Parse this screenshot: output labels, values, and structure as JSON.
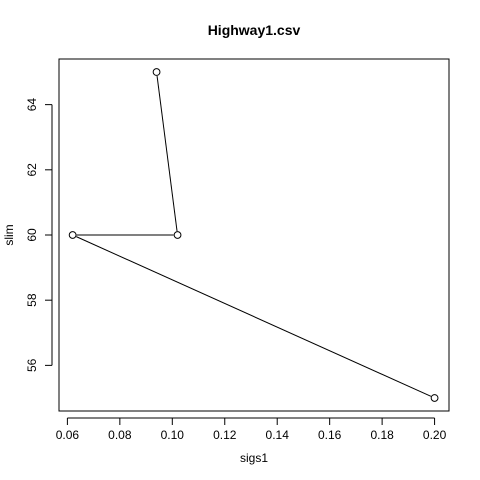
{
  "chart_data": {
    "type": "line",
    "title": "Highway1.csv",
    "xlabel": "sigs1",
    "ylabel": "slim",
    "xlim": [
      0.0568,
      0.2055
    ],
    "ylim": [
      54.6,
      65.4
    ],
    "x_ticks": [
      0.06,
      0.08,
      0.1,
      0.12,
      0.14,
      0.16,
      0.18,
      0.2
    ],
    "x_tick_labels": [
      "0.06",
      "0.08",
      "0.10",
      "0.12",
      "0.14",
      "0.16",
      "0.18",
      "0.20"
    ],
    "y_ticks": [
      56,
      58,
      60,
      62,
      64
    ],
    "y_tick_labels": [
      "56",
      "58",
      "60",
      "62",
      "64"
    ],
    "grid": false,
    "series": [
      {
        "marker": "open-circle",
        "line": true,
        "color": "#000000",
        "x": [
          0.094,
          0.102,
          0.062,
          0.2
        ],
        "y": [
          65,
          60,
          60,
          55
        ]
      }
    ]
  }
}
